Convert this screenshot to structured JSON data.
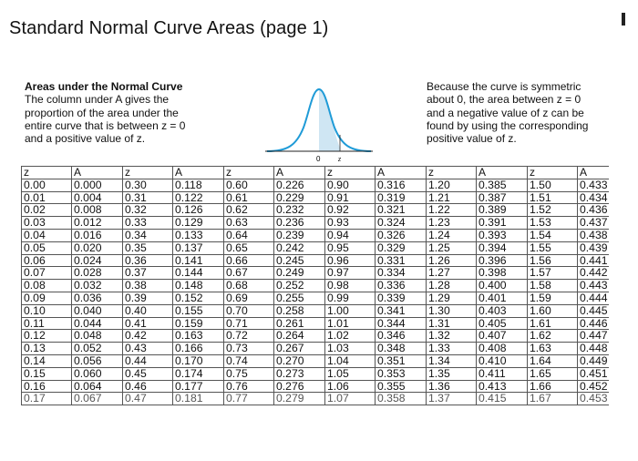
{
  "page_title": "Standard Normal Curve Areas (page 1)",
  "intro_left": {
    "heading": "Areas under the Normal Curve",
    "body": "The column under A gives the\nproportion of the area under the\nentire curve that is between z = 0\nand a positive value of z."
  },
  "intro_right": "Because the curve is symmetric\nabout 0, the area between z = 0\nand a negative value of z can be\nfound by using the corresponding\npositive value of z.",
  "curve": {
    "zero_label": "0",
    "z_label": "z",
    "shade_color": "#1f9bd7"
  },
  "table": {
    "headers": [
      "z",
      "A",
      "z",
      "A",
      "z",
      "A",
      "z",
      "A",
      "z",
      "A",
      "z",
      "A"
    ],
    "rows": [
      [
        "0.00",
        "0.000",
        "0.30",
        "0.118",
        "0.60",
        "0.226",
        "0.90",
        "0.316",
        "1.20",
        "0.385",
        "1.50",
        "0.433"
      ],
      [
        "0.01",
        "0.004",
        "0.31",
        "0.122",
        "0.61",
        "0.229",
        "0.91",
        "0.319",
        "1.21",
        "0.387",
        "1.51",
        "0.434"
      ],
      [
        "0.02",
        "0.008",
        "0.32",
        "0.126",
        "0.62",
        "0.232",
        "0.92",
        "0.321",
        "1.22",
        "0.389",
        "1.52",
        "0.436"
      ],
      [
        "0.03",
        "0.012",
        "0.33",
        "0.129",
        "0.63",
        "0.236",
        "0.93",
        "0.324",
        "1.23",
        "0.391",
        "1.53",
        "0.437"
      ],
      [
        "0.04",
        "0.016",
        "0.34",
        "0.133",
        "0.64",
        "0.239",
        "0.94",
        "0.326",
        "1.24",
        "0.393",
        "1.54",
        "0.438"
      ],
      [
        "0.05",
        "0.020",
        "0.35",
        "0.137",
        "0.65",
        "0.242",
        "0.95",
        "0.329",
        "1.25",
        "0.394",
        "1.55",
        "0.439"
      ],
      [
        "0.06",
        "0.024",
        "0.36",
        "0.141",
        "0.66",
        "0.245",
        "0.96",
        "0.331",
        "1.26",
        "0.396",
        "1.56",
        "0.441"
      ],
      [
        "0.07",
        "0.028",
        "0.37",
        "0.144",
        "0.67",
        "0.249",
        "0.97",
        "0.334",
        "1.27",
        "0.398",
        "1.57",
        "0.442"
      ],
      [
        "0.08",
        "0.032",
        "0.38",
        "0.148",
        "0.68",
        "0.252",
        "0.98",
        "0.336",
        "1.28",
        "0.400",
        "1.58",
        "0.443"
      ],
      [
        "0.09",
        "0.036",
        "0.39",
        "0.152",
        "0.69",
        "0.255",
        "0.99",
        "0.339",
        "1.29",
        "0.401",
        "1.59",
        "0.444"
      ],
      [
        "0.10",
        "0.040",
        "0.40",
        "0.155",
        "0.70",
        "0.258",
        "1.00",
        "0.341",
        "1.30",
        "0.403",
        "1.60",
        "0.445"
      ],
      [
        "0.11",
        "0.044",
        "0.41",
        "0.159",
        "0.71",
        "0.261",
        "1.01",
        "0.344",
        "1.31",
        "0.405",
        "1.61",
        "0.446"
      ],
      [
        "0.12",
        "0.048",
        "0.42",
        "0.163",
        "0.72",
        "0.264",
        "1.02",
        "0.346",
        "1.32",
        "0.407",
        "1.62",
        "0.447"
      ],
      [
        "0.13",
        "0.052",
        "0.43",
        "0.166",
        "0.73",
        "0.267",
        "1.03",
        "0.348",
        "1.33",
        "0.408",
        "1.63",
        "0.448"
      ],
      [
        "0.14",
        "0.056",
        "0.44",
        "0.170",
        "0.74",
        "0.270",
        "1.04",
        "0.351",
        "1.34",
        "0.410",
        "1.64",
        "0.449"
      ],
      [
        "0.15",
        "0.060",
        "0.45",
        "0.174",
        "0.75",
        "0.273",
        "1.05",
        "0.353",
        "1.35",
        "0.411",
        "1.65",
        "0.451"
      ],
      [
        "0.16",
        "0.064",
        "0.46",
        "0.177",
        "0.76",
        "0.276",
        "1.06",
        "0.355",
        "1.36",
        "0.413",
        "1.66",
        "0.452"
      ],
      [
        "0.17",
        "0.067",
        "0.47",
        "0.181",
        "0.77",
        "0.279",
        "1.07",
        "0.358",
        "1.37",
        "0.415",
        "1.67",
        "0.453"
      ]
    ]
  }
}
